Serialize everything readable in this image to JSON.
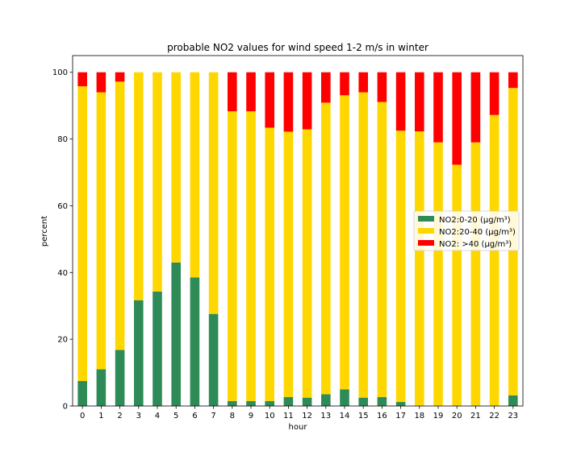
{
  "chart_data": {
    "type": "bar",
    "stacked": true,
    "title": "probable NO2 values for wind speed 1-2 m/s in winter",
    "xlabel": "hour",
    "ylabel": "percent",
    "ylim": [
      0,
      105
    ],
    "yticks": [
      0,
      20,
      40,
      60,
      80,
      100
    ],
    "grid": false,
    "legend_position": "center-right",
    "categories": [
      "0",
      "1",
      "2",
      "3",
      "4",
      "5",
      "6",
      "7",
      "8",
      "9",
      "10",
      "11",
      "12",
      "13",
      "14",
      "15",
      "16",
      "17",
      "18",
      "19",
      "20",
      "21",
      "22",
      "23"
    ],
    "series": [
      {
        "name": "NO2:0-20 (µg/m³)",
        "color": "#2e8b57",
        "values": [
          7.5,
          11,
          16.8,
          31.7,
          34.3,
          43,
          38.5,
          27.6,
          1.5,
          1.5,
          1.5,
          2.7,
          2.5,
          3.5,
          5,
          2.5,
          2.7,
          1.2,
          0,
          0,
          0,
          0,
          0,
          3.2
        ]
      },
      {
        "name": "NO2:20-40 (µg/m³)",
        "color": "#ffd700",
        "values": [
          88.3,
          83,
          80.4,
          68.3,
          65.7,
          57,
          61.5,
          72.4,
          86.8,
          86.8,
          81.9,
          79.5,
          80.4,
          87.4,
          88.1,
          91.5,
          88.4,
          81.3,
          82.3,
          79,
          72.3,
          79,
          87.2,
          92.1
        ]
      },
      {
        "name": "NO2: >40 (µg/m³)",
        "color": "#ff0000",
        "values": [
          4.2,
          6,
          2.8,
          0,
          0,
          0,
          0,
          0,
          11.7,
          11.7,
          16.6,
          17.8,
          17.1,
          9.1,
          6.9,
          6,
          8.9,
          17.5,
          17.7,
          21,
          27.7,
          21,
          12.8,
          4.7
        ]
      }
    ]
  }
}
